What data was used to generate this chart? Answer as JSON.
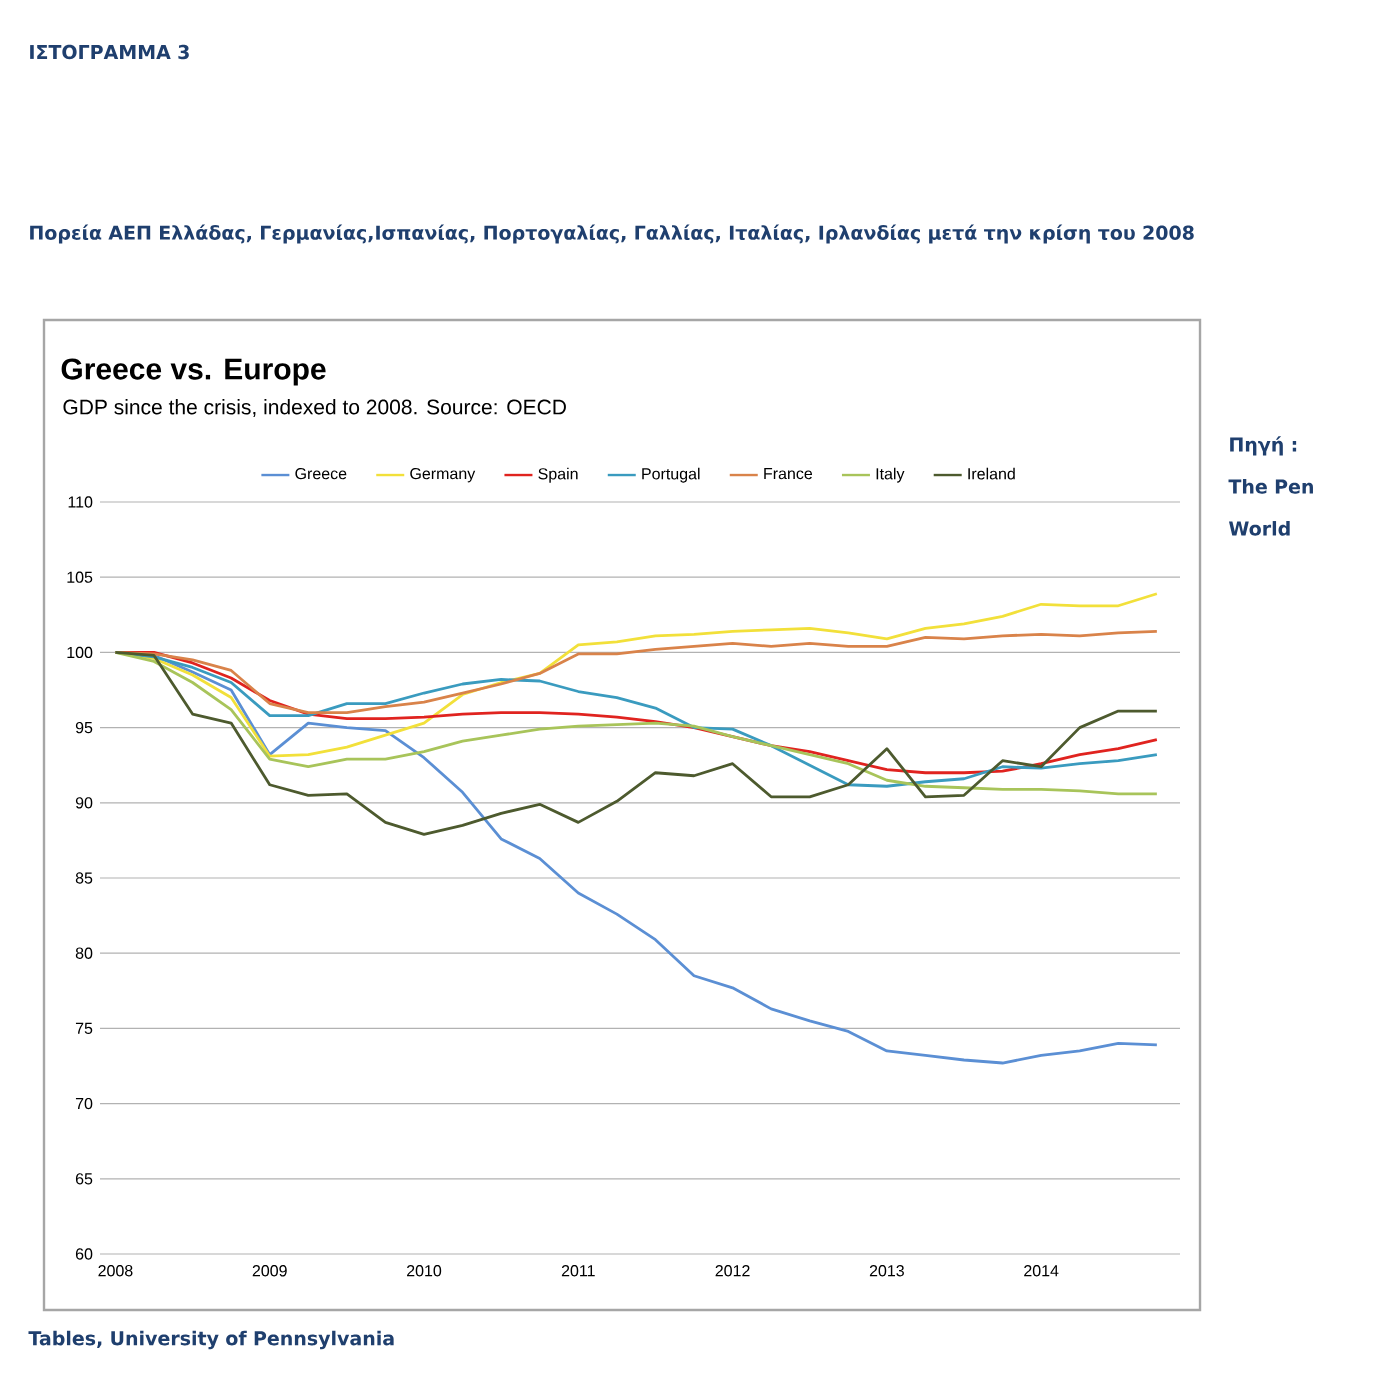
{
  "chart_data": {
    "type": "line",
    "title": "Greece vs. Europe",
    "subtitle": "GDP since the crisis, indexed to 2008. Source: OECD",
    "annotations": [
      "ΙΣΤΟΓΡΑΜΜΑ 3",
      "Πορεία ΑΕΠ  Ελλάδας, Γερμανίας,Ισπανίας, Πορτογαλίας, Γαλλίας, Ιταλίας, Ιρλανδίας μετά την κρίση του 2008",
      "Πηγή : The Pen World",
      "Tables, University of Pennsylvania"
    ],
    "x": [
      2008,
      2008.25,
      2008.5,
      2008.75,
      2009,
      2009.25,
      2009.5,
      2009.75,
      2010,
      2010.25,
      2010.5,
      2010.75,
      2011,
      2011.25,
      2011.5,
      2011.75,
      2012,
      2012.25,
      2012.5,
      2012.75,
      2013,
      2013.25,
      2013.5,
      2013.75,
      2014,
      2014.25,
      2014.5,
      2014.75
    ],
    "series": [
      {
        "name": "Greece",
        "color": "#5b8fd4",
        "values": [
          100,
          99.8,
          98.7,
          97.5,
          93.2,
          95.3,
          95.0,
          94.8,
          93.0,
          90.7,
          87.6,
          86.3,
          84.0,
          82.6,
          80.9,
          78.5,
          77.7,
          76.3,
          75.5,
          74.8,
          73.5,
          73.2,
          72.9,
          72.7,
          73.2,
          73.5,
          74.0,
          73.9
        ]
      },
      {
        "name": "Germany",
        "color": "#f2e03a",
        "values": [
          100,
          99.6,
          98.5,
          97.0,
          93.1,
          93.2,
          93.7,
          94.5,
          95.3,
          97.2,
          98.0,
          98.6,
          100.5,
          100.7,
          101.1,
          101.2,
          101.4,
          101.5,
          101.6,
          101.3,
          100.9,
          101.6,
          101.9,
          102.4,
          103.2,
          103.1,
          103.1,
          103.9
        ]
      },
      {
        "name": "Spain",
        "color": "#e0231f",
        "values": [
          100,
          100,
          99.3,
          98.3,
          96.8,
          95.9,
          95.6,
          95.6,
          95.7,
          95.9,
          96.0,
          96.0,
          95.9,
          95.7,
          95.4,
          95.0,
          94.4,
          93.8,
          93.4,
          92.8,
          92.2,
          92.0,
          92.0,
          92.1,
          92.6,
          93.2,
          93.6,
          94.2
        ]
      },
      {
        "name": "Portugal",
        "color": "#3a9bbf",
        "values": [
          100,
          99.7,
          99.0,
          98.0,
          95.8,
          95.8,
          96.6,
          96.6,
          97.3,
          97.9,
          98.2,
          98.1,
          97.4,
          97.0,
          96.3,
          95.0,
          94.9,
          93.8,
          92.5,
          91.2,
          91.1,
          91.4,
          91.6,
          92.4,
          92.3,
          92.6,
          92.8,
          93.2
        ]
      },
      {
        "name": "France",
        "color": "#d9834a",
        "values": [
          100,
          99.9,
          99.5,
          98.8,
          96.6,
          96.0,
          96.0,
          96.4,
          96.7,
          97.3,
          97.9,
          98.6,
          99.9,
          99.9,
          100.2,
          100.4,
          100.6,
          100.4,
          100.6,
          100.4,
          100.4,
          101.0,
          100.9,
          101.1,
          101.2,
          101.1,
          101.3,
          101.4
        ]
      },
      {
        "name": "Italy",
        "color": "#a8c45a",
        "values": [
          100,
          99.4,
          98.0,
          96.2,
          92.9,
          92.4,
          92.9,
          92.9,
          93.4,
          94.1,
          94.5,
          94.9,
          95.1,
          95.2,
          95.3,
          95.1,
          94.4,
          93.8,
          93.2,
          92.6,
          91.5,
          91.1,
          91.0,
          90.9,
          90.9,
          90.8,
          90.6,
          90.6
        ]
      },
      {
        "name": "Ireland",
        "color": "#4d5a2e",
        "values": [
          100,
          99.8,
          95.9,
          95.3,
          91.2,
          90.5,
          90.6,
          88.7,
          87.9,
          88.5,
          89.3,
          89.9,
          88.7,
          90.1,
          92.0,
          91.8,
          92.6,
          90.4,
          90.4,
          91.2,
          93.6,
          90.4,
          90.5,
          92.8,
          92.4,
          95.0,
          96.1,
          96.1
        ]
      }
    ],
    "xlim": [
      2007.9,
      2014.9
    ],
    "xticks": [
      2008,
      2009,
      2010,
      2011,
      2012,
      2013,
      2014
    ],
    "ylim": [
      60,
      110
    ],
    "yticks": [
      60,
      65,
      70,
      75,
      80,
      85,
      90,
      95,
      100,
      105,
      110
    ],
    "grid": "y",
    "legend": "top",
    "marker": "none",
    "line_style": "solid"
  }
}
